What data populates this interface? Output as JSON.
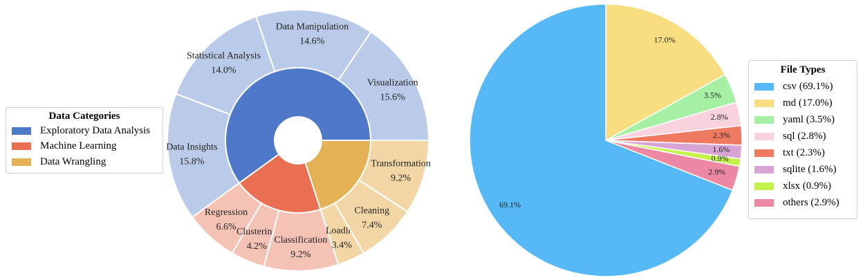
{
  "chart_data": [
    {
      "type": "pie",
      "subtype": "nested-donut",
      "legend_title": "Data Categories",
      "legend_placement": "center-left",
      "inner_ring": [
        {
          "name": "Exploratory Data Analysis",
          "value": 60.0,
          "color": "#4e79c9"
        },
        {
          "name": "Machine Learning",
          "value": 20.0,
          "color": "#ea6f52"
        },
        {
          "name": "Data Wrangling",
          "value": 20.0,
          "color": "#e4b155"
        }
      ],
      "outer_ring": [
        {
          "name": "Visualization",
          "value": 15.6,
          "label": "15.6%",
          "group": 0,
          "color": "#b9cbe8"
        },
        {
          "name": "Data Manipulation",
          "value": 14.6,
          "label": "14.6%",
          "group": 0,
          "color": "#b9cbe8"
        },
        {
          "name": "Statistical Analysis",
          "value": 14.0,
          "label": "14.0%",
          "group": 0,
          "color": "#b9cbe8"
        },
        {
          "name": "Data Insights",
          "value": 15.8,
          "label": "15.8%",
          "group": 0,
          "color": "#b9cbe8"
        },
        {
          "name": "Regression",
          "value": 6.6,
          "label": "6.6%",
          "group": 1,
          "color": "#f5c2b6"
        },
        {
          "name": "Clustering",
          "value": 4.2,
          "label": "4.2%",
          "group": 1,
          "color": "#f5c2b6"
        },
        {
          "name": "Classification",
          "value": 9.2,
          "label": "9.2%",
          "group": 1,
          "color": "#f5c2b6"
        },
        {
          "name": "Loading",
          "value": 3.4,
          "label": "3.4%",
          "group": 2,
          "color": "#f2d6a6"
        },
        {
          "name": "Cleaning",
          "value": 7.4,
          "label": "7.4%",
          "group": 2,
          "color": "#f2d6a6"
        },
        {
          "name": "Transformation",
          "value": 9.2,
          "label": "9.2%",
          "group": 2,
          "color": "#f2d6a6"
        }
      ]
    },
    {
      "type": "pie",
      "legend_title": "File Types",
      "legend_placement": "center-right",
      "slices": [
        {
          "name": "csv",
          "value": 69.1,
          "label": "69.1%",
          "legend": "csv (69.1%)",
          "color": "#56b8f5"
        },
        {
          "name": "md",
          "value": 17.0,
          "label": "17.0%",
          "legend": "md (17.0%)",
          "color": "#f8de80"
        },
        {
          "name": "yaml",
          "value": 3.5,
          "label": "3.5%",
          "legend": "yaml (3.5%)",
          "color": "#a6f0a4"
        },
        {
          "name": "sql",
          "value": 2.8,
          "label": "2.8%",
          "legend": "sql (2.8%)",
          "color": "#f8d2dc"
        },
        {
          "name": "txt",
          "value": 2.3,
          "label": "2.3%",
          "legend": "txt (2.3%)",
          "color": "#ee7a62"
        },
        {
          "name": "sqlite",
          "value": 1.6,
          "label": "1.6%",
          "legend": "sqlite (1.6%)",
          "color": "#d8a4d6"
        },
        {
          "name": "xlsx",
          "value": 0.9,
          "label": "0.9%",
          "legend": "xlsx (0.9%)",
          "color": "#c4f24a"
        },
        {
          "name": "others",
          "value": 2.9,
          "label": "2.9%",
          "legend": "others (2.9%)",
          "color": "#ec88a4"
        }
      ]
    }
  ]
}
